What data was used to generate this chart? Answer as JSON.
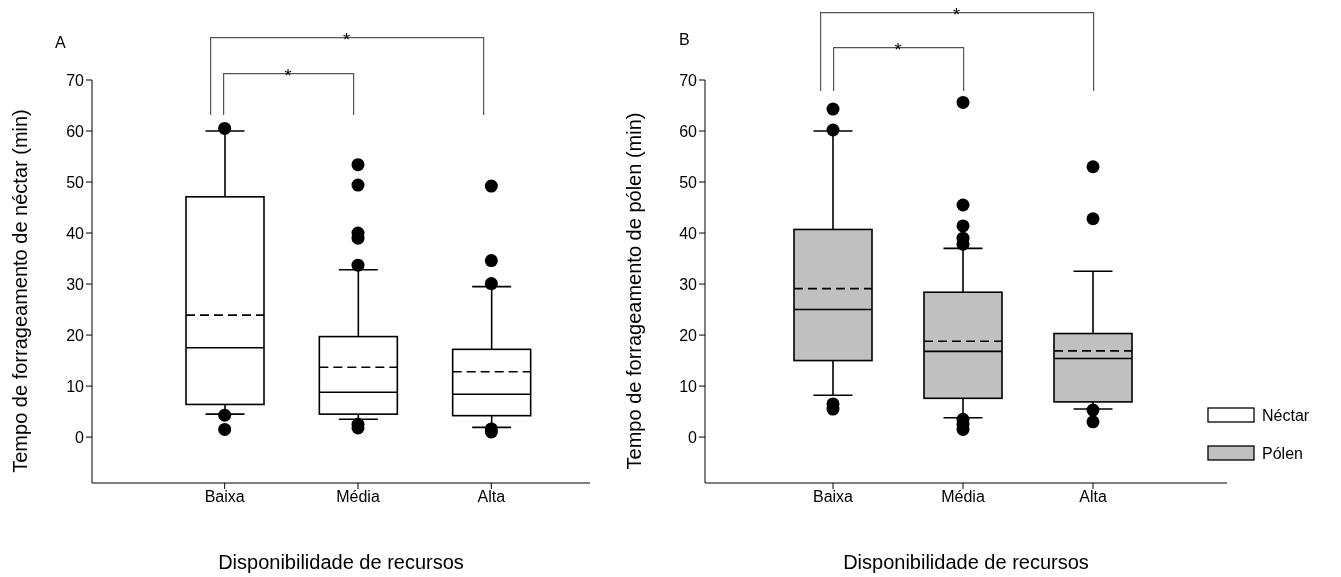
{
  "chart_data": [
    {
      "type": "box",
      "title": "A",
      "xlabel": "Disponibilidade de recursos",
      "ylabel": "Tempo de forrageamento de néctar (min)",
      "categories": [
        "Baixa",
        "Média",
        "Alta"
      ],
      "ylim": [
        -9,
        70
      ],
      "yticks": [
        0,
        10,
        20,
        30,
        40,
        50,
        60,
        70
      ],
      "legend": "right",
      "annotations": [
        "*",
        "*"
      ],
      "series": [
        {
          "name": "Néctar",
          "color": "#ffffff",
          "boxes": [
            {
              "low": 4.5,
              "q1": 6.4,
              "median": 17.5,
              "q3": 47.1,
              "high": 60,
              "mean": 23.9,
              "outliers": [
                60.5,
                4.3,
                1.5
              ]
            },
            {
              "low": 3.5,
              "q1": 4.5,
              "median": 8.8,
              "q3": 19.7,
              "high": 32.8,
              "mean": 13.7,
              "outliers": [
                53.4,
                49.4,
                40,
                39,
                33.7,
                2.5,
                1.8
              ]
            },
            {
              "low": 1.9,
              "q1": 4.2,
              "median": 8.4,
              "q3": 17.2,
              "high": 29.5,
              "mean": 12.8,
              "outliers": [
                49.2,
                34.6,
                30.1,
                1.6,
                1
              ]
            }
          ]
        }
      ]
    },
    {
      "type": "box",
      "title": "B",
      "xlabel": "Disponibilidade de recursos",
      "ylabel": "Tempo de forrageamento de pólen (min)",
      "categories": [
        "Baixa",
        "Média",
        "Alta"
      ],
      "ylim": [
        -9,
        70
      ],
      "yticks": [
        0,
        10,
        20,
        30,
        40,
        50,
        60,
        70
      ],
      "legend": "right",
      "annotations": [
        "*",
        "*"
      ],
      "series": [
        {
          "name": "Pólen",
          "color": "#c0c0c0",
          "boxes": [
            {
              "low": 8.2,
              "q1": 15,
              "median": 25,
              "q3": 40.7,
              "high": 60,
              "mean": 29.1,
              "outliers": [
                64.3,
                60.2,
                6.5,
                5.5
              ]
            },
            {
              "low": 3.8,
              "q1": 7.6,
              "median": 16.8,
              "q3": 28.4,
              "high": 37,
              "mean": 18.8,
              "outliers": [
                65.6,
                45.5,
                41.4,
                39,
                37.8,
                3.5,
                2.5,
                1.5
              ]
            },
            {
              "low": 5.5,
              "q1": 6.9,
              "median": 15.4,
              "q3": 20.3,
              "high": 32.5,
              "mean": 16.9,
              "outliers": [
                53,
                42.8,
                5.3,
                3
              ]
            }
          ]
        }
      ]
    }
  ]
}
